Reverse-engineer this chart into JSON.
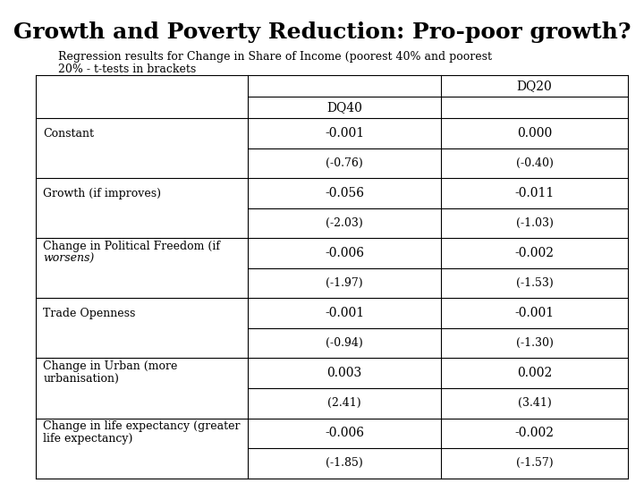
{
  "title": "Growth and Poverty Reduction: Pro-poor growth?",
  "subtitle_line1": "Regression results for Change in Share of Income (poorest 40% and poorest",
  "subtitle_line2": "20% - t-tests in brackets",
  "title_fontsize": 18,
  "subtitle_fontsize": 9,
  "rows": [
    {
      "label": "Constant",
      "label2": "",
      "label2_italic": false,
      "val1": "-0.001",
      "val2": "0.000",
      "tval1": "(-0.76)",
      "tval2": "(-0.40)"
    },
    {
      "label": "Growth (if improves)",
      "label2": "",
      "label2_italic": false,
      "val1": "-0.056",
      "val2": "-0.011",
      "tval1": "(-2.03)",
      "tval2": "(-1.03)"
    },
    {
      "label": "Change in Political Freedom (if",
      "label2": "worsens)",
      "label2_italic": true,
      "val1": "-0.006",
      "val2": "-0.002",
      "tval1": "(-1.97)",
      "tval2": "(-1.53)"
    },
    {
      "label": "Trade Openness",
      "label2": "",
      "label2_italic": false,
      "val1": "-0.001",
      "val2": "-0.001",
      "tval1": "(-0.94)",
      "tval2": "(-1.30)"
    },
    {
      "label": "Change in Urban (more",
      "label2": "urbanisation)",
      "label2_italic": false,
      "val1": "0.003",
      "val2": "0.002",
      "tval1": "(2.41)",
      "tval2": "(3.41)"
    },
    {
      "label": "Change in life expectancy (greater",
      "label2": "life expectancy)",
      "label2_italic": false,
      "val1": "-0.006",
      "val2": "-0.002",
      "tval1": "(-1.85)",
      "tval2": "(-1.57)"
    }
  ],
  "background_color": "#ffffff",
  "line_color": "#000000",
  "val_fontsize": 10,
  "tval_fontsize": 9,
  "label_fontsize": 9,
  "header_fontsize": 10
}
